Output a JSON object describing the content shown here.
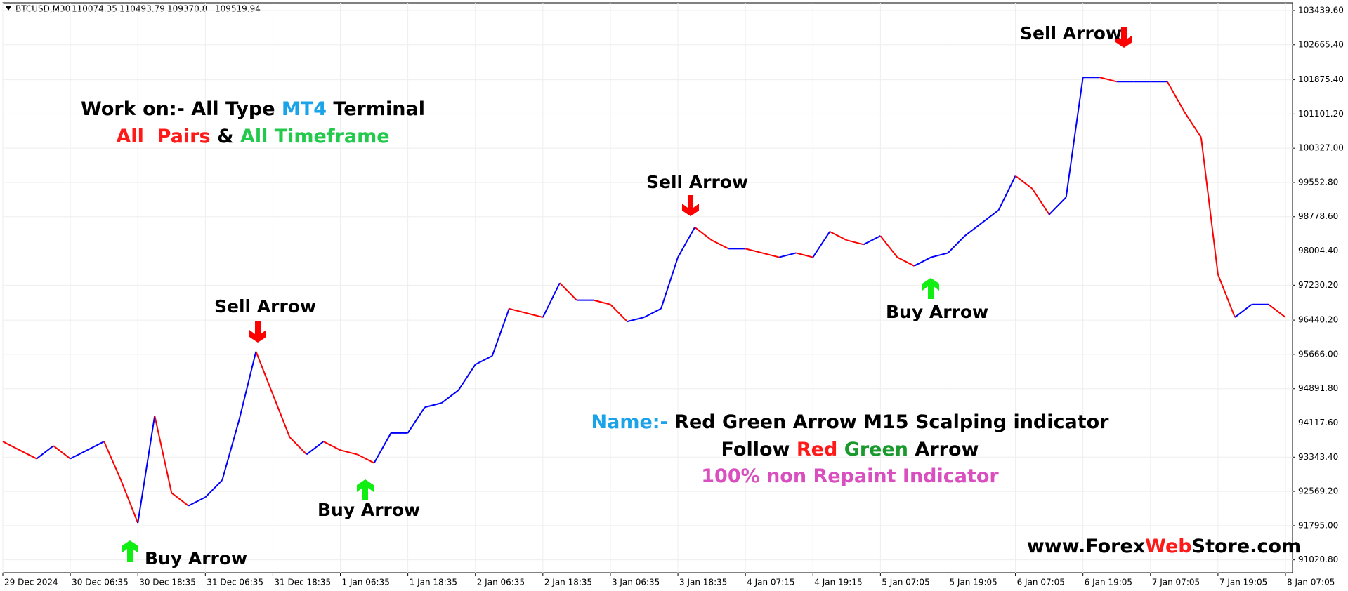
{
  "chart_data": {
    "type": "line",
    "symbol": "BTCUSD,M30",
    "header_prices": [
      110074.35,
      110493.79,
      109370.8,
      109519.94
    ],
    "categories": [
      "29 Dec 2024",
      null,
      null,
      null,
      "30 Dec 06:35",
      null,
      null,
      null,
      "30 Dec 18:35",
      null,
      null,
      null,
      "31 Dec 06:35",
      null,
      null,
      null,
      "31 Dec 18:35",
      null,
      null,
      null,
      "1 Jan 06:35",
      null,
      null,
      null,
      "1 Jan 18:35",
      null,
      null,
      null,
      "2 Jan 06:35",
      null,
      null,
      null,
      "2 Jan 18:35",
      null,
      null,
      null,
      "3 Jan 06:35",
      null,
      null,
      null,
      "3 Jan 18:35",
      null,
      null,
      null,
      "4 Jan 07:15",
      null,
      null,
      null,
      "4 Jan 19:15",
      null,
      null,
      null,
      "5 Jan 07:05",
      null,
      null,
      null,
      "5 Jan 19:05",
      null,
      null,
      null,
      "6 Jan 07:05",
      null,
      null,
      null,
      "6 Jan 19:05",
      null,
      null,
      null,
      "7 Jan 07:05",
      null,
      null,
      null,
      "7 Jan 19:05",
      null,
      null,
      null,
      "8 Jan 07:05"
    ],
    "values": [
      93696,
      93502,
      93308,
      93599,
      93308,
      93502,
      93696,
      92824,
      91856,
      94277,
      92534,
      92243,
      92437,
      92824,
      94180,
      95730,
      94761,
      93793,
      93405,
      93696,
      93502,
      93405,
      93212,
      93890,
      93890,
      94471,
      94568,
      94858,
      95439,
      95633,
      96699,
      96602,
      96505,
      97280,
      96892,
      96892,
      96795,
      96408,
      96505,
      96699,
      97861,
      98539,
      98248,
      98055,
      98055,
      97958,
      97861,
      97958,
      97861,
      98442,
      98248,
      98151,
      98345,
      97861,
      97667,
      97861,
      97958,
      98345,
      98636,
      98926,
      99701,
      99411,
      98829,
      99217,
      101929,
      101929,
      101832,
      101832,
      101832,
      101832,
      101154,
      100573,
      97473,
      96505,
      96795,
      96795,
      96505
    ],
    "up_color": "#0000ff",
    "down_color": "#ff0000",
    "ylim": [
      90730,
      103614
    ],
    "yticks": [
      {
        "value": 103439.6,
        "label": "103439.60"
      },
      {
        "value": 102665.4,
        "label": "102665.40"
      },
      {
        "value": 101875.4,
        "label": "101875.40"
      },
      {
        "value": 101101.2,
        "label": "101101.20"
      },
      {
        "value": 100327,
        "label": "100327.00"
      },
      {
        "value": 99552.8,
        "label": "99552.80"
      },
      {
        "value": 98778.6,
        "label": "98778.60"
      },
      {
        "value": 98004.4,
        "label": "98004.40"
      },
      {
        "value": 97230.2,
        "label": "97230.20"
      },
      {
        "value": 96440.2,
        "label": "96440.20"
      },
      {
        "value": 95666,
        "label": "95666.00"
      },
      {
        "value": 94891.8,
        "label": "94891.80"
      },
      {
        "value": 94117.6,
        "label": "94117.60"
      },
      {
        "value": 93343.4,
        "label": "93343.40"
      },
      {
        "value": 92569.2,
        "label": "92569.20"
      },
      {
        "value": 91795,
        "label": "91795.00"
      },
      {
        "value": 91020.8,
        "label": "91020.80"
      }
    ],
    "grid": true,
    "annotations": [
      "Buy Arrow",
      "Sell Arrow",
      "Buy Arrow",
      "Sell Arrow",
      "Buy Arrow",
      "Sell Arrow"
    ],
    "notes": {
      "line1": [
        "Work on:- All Type",
        "MT4",
        "Terminal"
      ],
      "line2": [
        "All",
        "Pairs",
        "&",
        "All Timeframe"
      ],
      "name": [
        "Name:-",
        "Red Green Arrow M15 Scalping indicator"
      ],
      "follow": [
        "Follow",
        "Red",
        "Green",
        "Arrow"
      ],
      "repaint": "100% non Repaint Indicator",
      "site": [
        "www.Forex",
        "Web",
        "Store.com"
      ]
    }
  }
}
